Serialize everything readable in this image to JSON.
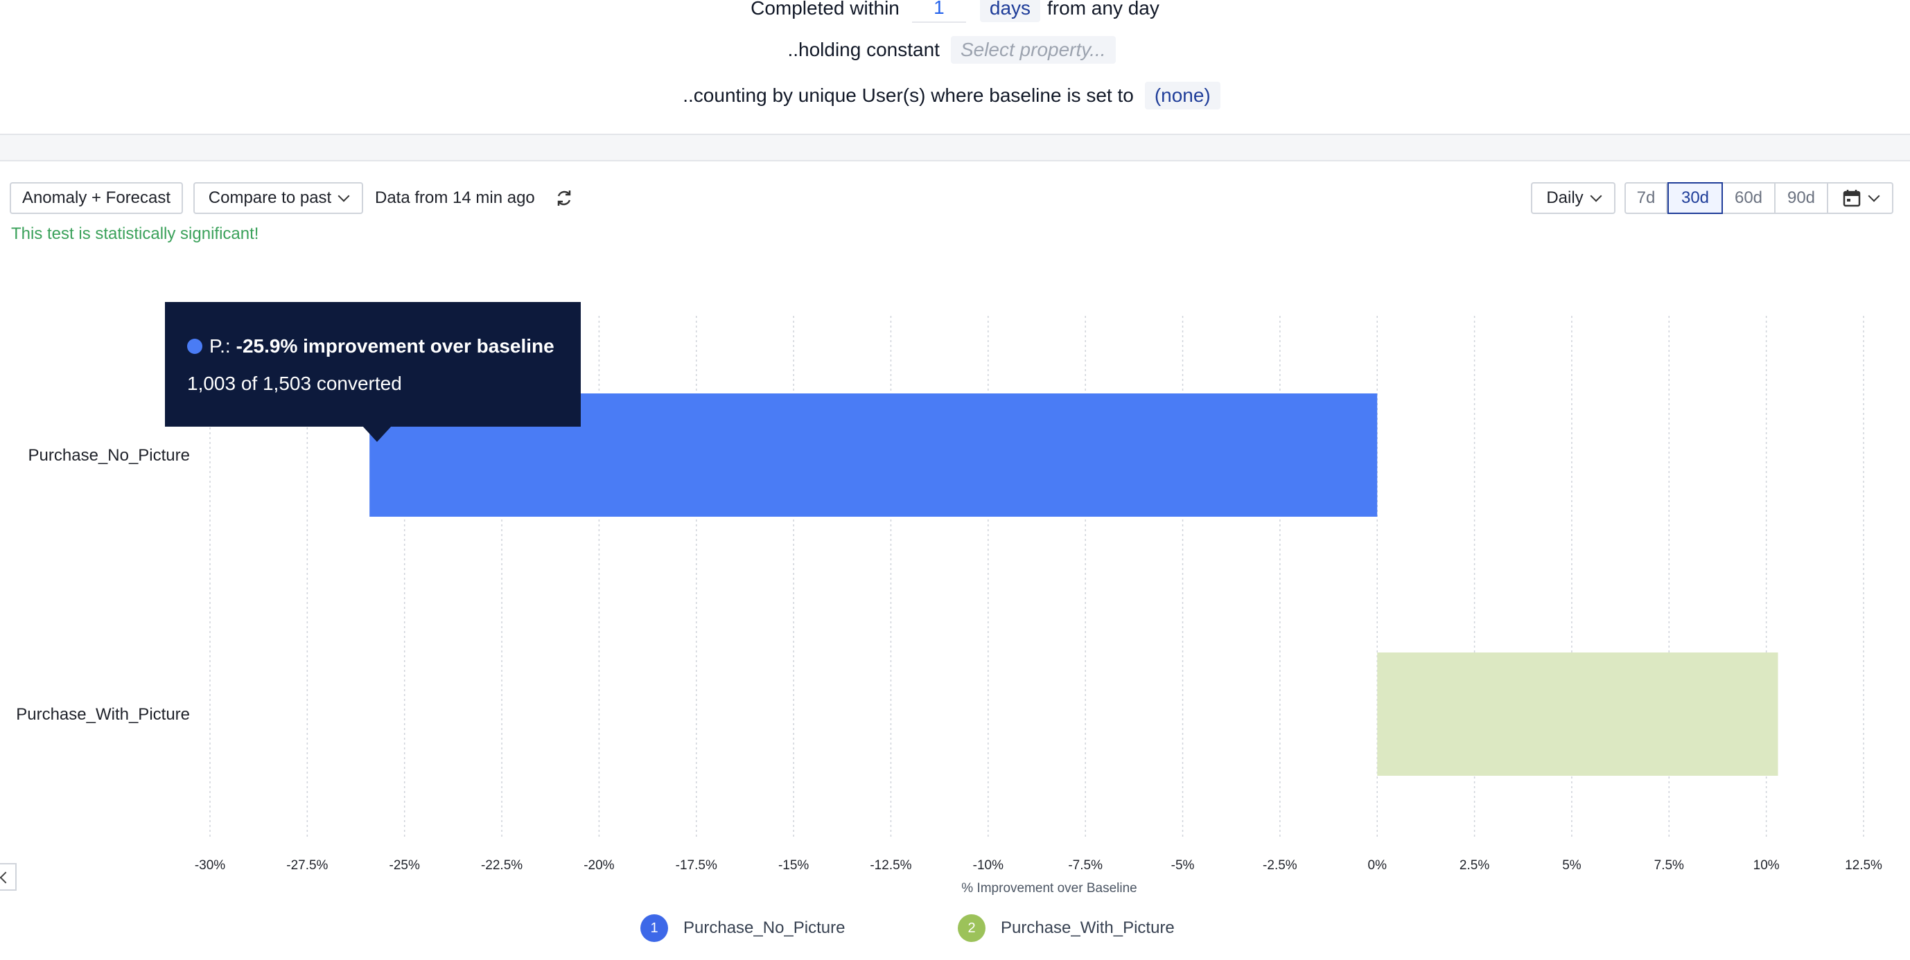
{
  "config": {
    "completed_within_label": "Completed within",
    "days_value": "1",
    "days_unit": "days",
    "from_any_day": "from any day",
    "holding_constant_label": "..holding constant",
    "select_property_placeholder": "Select property...",
    "counting_label": "..counting by unique User(s) where baseline is set to",
    "baseline_value": "(none)"
  },
  "toolbar": {
    "anomaly_button": "Anomaly + Forecast",
    "compare_button": "Compare to past",
    "data_freshness": "Data from 14 min ago",
    "interval_select": "Daily",
    "ranges": [
      "7d",
      "30d",
      "60d",
      "90d"
    ],
    "active_range": "30d"
  },
  "significance_message": "This test is statistically significant!",
  "tooltip": {
    "series_short": "P.:",
    "headline": "-25.9% improvement over baseline",
    "detail": "1,003 of 1,503 converted"
  },
  "legend": [
    {
      "index": "1",
      "label": "Purchase_No_Picture",
      "color": "#3d68e8"
    },
    {
      "index": "2",
      "label": "Purchase_With_Picture",
      "color": "#9cc25a"
    }
  ],
  "chart_data": {
    "type": "bar",
    "orientation": "horizontal",
    "categories": [
      "Purchase_No_Picture",
      "Purchase_With_Picture"
    ],
    "values": [
      -25.9,
      10.3
    ],
    "colors": [
      "#4a7cf5",
      "#dce8c2"
    ],
    "xlabel": "% Improvement over Baseline",
    "xlim": [
      -30,
      12.5
    ],
    "xticks": [
      -30,
      -27.5,
      -25,
      -22.5,
      -20,
      -17.5,
      -15,
      -12.5,
      -10,
      -7.5,
      -5,
      -2.5,
      0,
      2.5,
      5,
      7.5,
      10,
      12.5
    ],
    "xtick_labels": [
      "-30%",
      "-27.5%",
      "-25%",
      "-22.5%",
      "-20%",
      "-17.5%",
      "-15%",
      "-12.5%",
      "-10%",
      "-7.5%",
      "-5%",
      "-2.5%",
      "0%",
      "2.5%",
      "5%",
      "7.5%",
      "10%",
      "12.5%"
    ],
    "grid": true
  }
}
